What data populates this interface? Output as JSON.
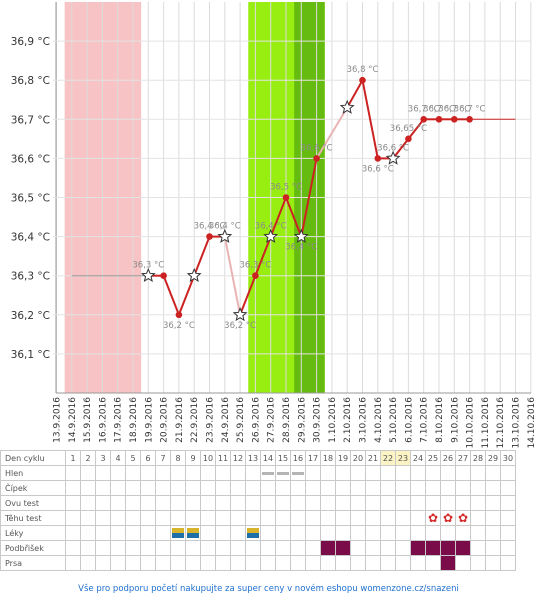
{
  "chart_data": {
    "type": "line",
    "y_ticks": [
      "36,1 °C",
      "36,2 °C",
      "36,3 °C",
      "36,4 °C",
      "36,5 °C",
      "36,6 °C",
      "36,7 °C",
      "36,8 °C",
      "36,9 °C"
    ],
    "ylim": [
      36.0,
      37.0
    ],
    "dates": [
      "13.9.2016",
      "14.9.2016",
      "15.9.2016",
      "16.9.2016",
      "17.9.2016",
      "18.9.2016",
      "19.9.2016",
      "20.9.2016",
      "21.9.2016",
      "22.9.2016",
      "23.9.2016",
      "24.9.2016",
      "25.9.2016",
      "26.9.2016",
      "27.9.2016",
      "28.9.2016",
      "29.9.2016",
      "30.9.2016",
      "1.10.2016",
      "2.10.2016",
      "3.10.2016",
      "4.10.2016",
      "5.10.2016",
      "6.10.2016",
      "7.10.2016",
      "8.10.2016",
      "9.10.2016",
      "10.10.2016",
      "11.10.2016",
      "12.10.2016",
      "13.10.2016",
      "14.10.2016"
    ],
    "menstruation_days": [
      "14.9.2016",
      "18.9.2016"
    ],
    "fertile_window": [
      "26.9.2016",
      "30.9.2016"
    ],
    "ovulation_window": [
      "29.9.2016",
      "30.9.2016"
    ],
    "background_colors": {
      "menstruation": "#f7c3c4",
      "fertile": "#99ee11",
      "ovulation": "#66bb11",
      "line": "#cc2222",
      "connector": "#999999"
    },
    "baseline_temp": {
      "x": [
        "14.9.2016",
        "19.9.2016"
      ],
      "y": 36.3
    },
    "tail_temp": {
      "x": [
        "10.10.2016",
        "13.10.2016"
      ],
      "y": 36.7
    },
    "series": [
      {
        "values": [
          {
            "x": "19.9.2016",
            "y": 36.3,
            "marker": "star",
            "label": "36,3 °C"
          },
          {
            "x": "20.9.2016",
            "y": 36.3,
            "marker": "dot",
            "label": ""
          },
          {
            "x": "21.9.2016",
            "y": 36.2,
            "marker": "dot",
            "label": "36,2 °C"
          },
          {
            "x": "22.9.2016",
            "y": 36.3,
            "marker": "star",
            "label": ""
          },
          {
            "x": "23.9.2016",
            "y": 36.4,
            "marker": "dot",
            "label": "36,4 °C"
          },
          {
            "x": "24.9.2016",
            "y": 36.4,
            "marker": "star",
            "label": "36,4 °C"
          },
          {
            "x": "25.9.2016",
            "y": 36.2,
            "marker": "star",
            "label": "36,2 °C"
          },
          {
            "x": "26.9.2016",
            "y": 36.3,
            "marker": "dot",
            "label": "36,3 °C"
          },
          {
            "x": "27.9.2016",
            "y": 36.4,
            "marker": "star",
            "label": "36,4 °C"
          },
          {
            "x": "28.9.2016",
            "y": 36.5,
            "marker": "dot",
            "label": "36,5 °C"
          },
          {
            "x": "29.9.2016",
            "y": 36.4,
            "marker": "star",
            "label": "36,4 °C"
          },
          {
            "x": "30.9.2016",
            "y": 36.6,
            "marker": "dot",
            "label": "36,6 °C"
          },
          {
            "x": "2.10.2016",
            "y": 36.73,
            "marker": "star",
            "label": ""
          },
          {
            "x": "3.10.2016",
            "y": 36.8,
            "marker": "dot",
            "label": "36,8 °C"
          },
          {
            "x": "4.10.2016",
            "y": 36.6,
            "marker": "dot",
            "label": "36,6 °C"
          },
          {
            "x": "5.10.2016",
            "y": 36.6,
            "marker": "star",
            "label": "36,6 °C"
          },
          {
            "x": "6.10.2016",
            "y": 36.65,
            "marker": "dot",
            "label": "36,65 °C"
          },
          {
            "x": "7.10.2016",
            "y": 36.7,
            "marker": "dot",
            "label": "36,7 °C"
          },
          {
            "x": "8.10.2016",
            "y": 36.7,
            "marker": "dot",
            "label": "36,7 °C"
          },
          {
            "x": "9.10.2016",
            "y": 36.7,
            "marker": "dot",
            "label": "36,7 °C"
          },
          {
            "x": "10.10.2016",
            "y": 36.7,
            "marker": "dot",
            "label": "36,7 °C"
          }
        ]
      }
    ]
  },
  "table": {
    "header_label": "Den cyklu",
    "days": [
      "1",
      "2",
      "3",
      "4",
      "5",
      "6",
      "7",
      "8",
      "9",
      "10",
      "11",
      "12",
      "13",
      "14",
      "15",
      "16",
      "17",
      "18",
      "19",
      "20",
      "21",
      "22",
      "23",
      "24",
      "25",
      "26",
      "27",
      "28",
      "29",
      "30"
    ],
    "highlight_days": [
      "22",
      "23"
    ],
    "rows": [
      {
        "name": "hlen-row",
        "label": "Hlen",
        "marks": {
          "14": "hlen",
          "15": "hlen",
          "16": "hlen"
        }
      },
      {
        "name": "cipek-row",
        "label": "Čípek",
        "marks": {}
      },
      {
        "name": "ovu-test-row",
        "label": "Ovu test",
        "marks": {}
      },
      {
        "name": "tehu-test-row",
        "label": "Těhu test",
        "marks": {
          "25": "flower",
          "26": "flower",
          "27": "flower"
        }
      },
      {
        "name": "leky-row",
        "label": "Léky",
        "marks": {
          "8": "pill",
          "9": "pill",
          "13": "pill"
        }
      },
      {
        "name": "podbrisek-row",
        "label": "Podbřišek",
        "marks": {
          "18": "pain",
          "19": "pain",
          "24": "pain",
          "25": "pain",
          "26": "pain",
          "27": "pain"
        }
      },
      {
        "name": "prsa-row",
        "label": "Prsa",
        "marks": {
          "26": "pain"
        }
      }
    ],
    "icons": {
      "hlen": "dash-icon",
      "pill": "pill-icon",
      "pain": "pain-square-icon",
      "flower": "flower-icon"
    }
  },
  "footer": {
    "text": "Vše pro podporu početí nakupujte za super ceny v novém eshopu womenzone.cz/snazeni"
  }
}
